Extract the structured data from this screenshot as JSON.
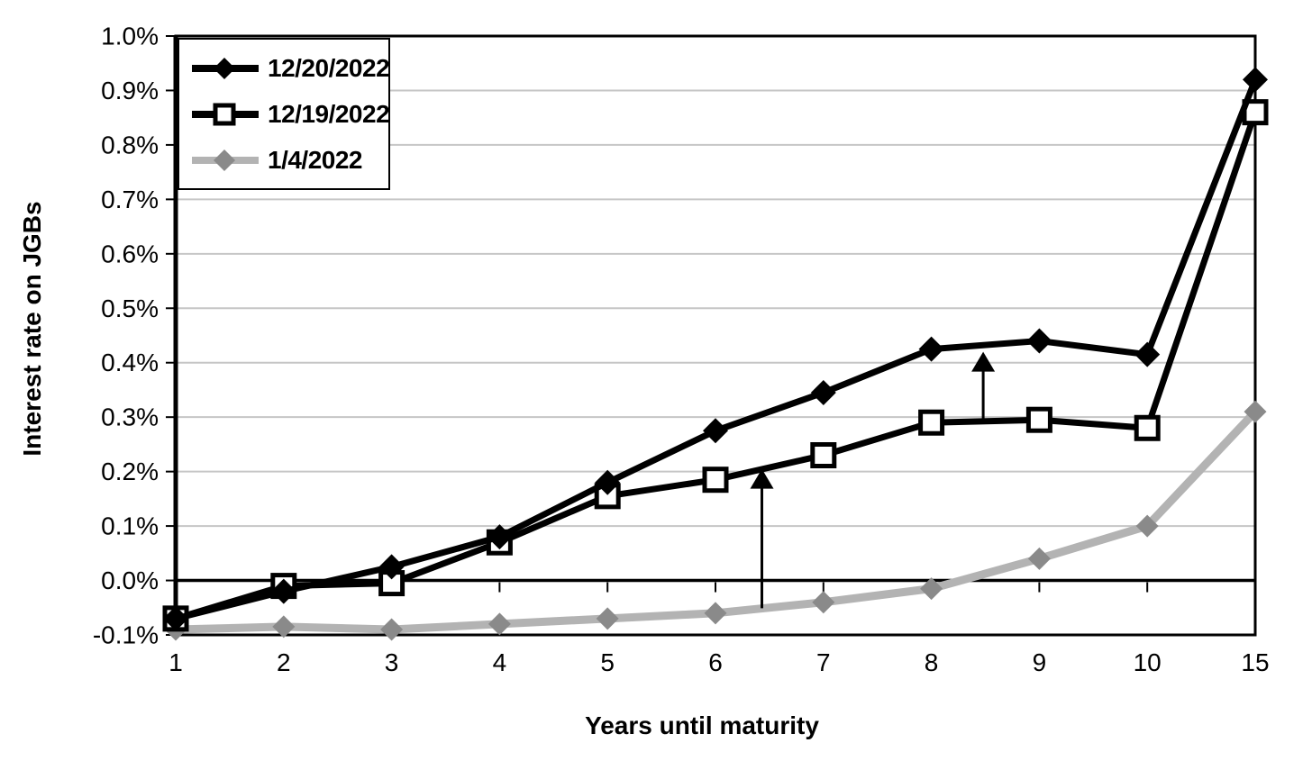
{
  "page": {
    "background": "#ffffff",
    "text_color": "#000000"
  },
  "chart_data": {
    "type": "line",
    "title": "",
    "xlabel": "Years until maturity",
    "ylabel": "Interest rate on JGBs",
    "categories": [
      "1",
      "2",
      "3",
      "4",
      "5",
      "6",
      "7",
      "8",
      "9",
      "10",
      "15"
    ],
    "y_ticks": [
      "1.0%",
      "0.9%",
      "0.8%",
      "0.7%",
      "0.6%",
      "0.5%",
      "0.4%",
      "0.3%",
      "0.2%",
      "0.1%",
      "0.0%",
      "-0.1%"
    ],
    "ylim": [
      -0.1,
      1.0
    ],
    "y_step": 0.1,
    "grid": true,
    "legend_position": "top-left",
    "colors": {
      "grid": "#c6c6c6",
      "axis": "#000000",
      "gray_line": "#b3b3b3",
      "gray_marker": "#8a8a8a"
    },
    "series": [
      {
        "name": "12/20/2022",
        "marker": "diamond",
        "color": "#000000",
        "marker_color": "#000000",
        "values": [
          -0.07,
          -0.02,
          0.025,
          0.08,
          0.18,
          0.275,
          0.345,
          0.425,
          0.44,
          0.415,
          0.92
        ]
      },
      {
        "name": "12/19/2022",
        "marker": "open-square",
        "color": "#000000",
        "marker_color": "#000000",
        "values": [
          -0.07,
          -0.01,
          -0.005,
          0.07,
          0.155,
          0.185,
          0.23,
          0.29,
          0.295,
          0.28,
          0.86
        ]
      },
      {
        "name": "1/4/2022",
        "marker": "diamond",
        "color": "#b3b3b3",
        "marker_color": "#8a8a8a",
        "values": [
          -0.09,
          -0.085,
          -0.09,
          -0.08,
          -0.07,
          -0.06,
          -0.04,
          -0.015,
          0.04,
          0.1,
          0.31
        ]
      }
    ],
    "annotations": [
      {
        "type": "arrow-up",
        "x_index": 5.43,
        "from": -0.051,
        "to": 0.205
      },
      {
        "type": "arrow-up",
        "x_index": 7.48,
        "from": 0.29,
        "to": 0.42
      }
    ]
  }
}
